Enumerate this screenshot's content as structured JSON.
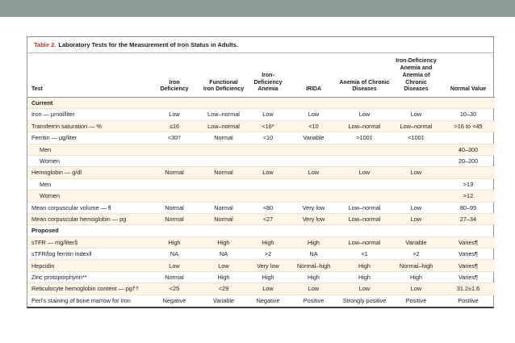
{
  "page": {
    "top_band_color": "#8c9e96",
    "background_color": "#ffffff",
    "stripe_color": "#fdf6e7",
    "title_accent_color": "#b93a31"
  },
  "table": {
    "title_label": "Table 2.",
    "title_text": "Laboratory Tests for the Measurement of Iron Status in Adults.",
    "columns": [
      "Test",
      "Iron\nDeficiency",
      "Functional\nIron Deficiency",
      "Iron-Deficiency\nAnemia",
      "IRIDA",
      "Anemia of Chronic\nDiseases",
      "Iron-Deficiency\nAnemia and\nAnemia of Chronic\nDiseases",
      "Normal Value"
    ],
    "rows": [
      {
        "type": "section",
        "label": "Current",
        "values": [
          "",
          "",
          "",
          "",
          "",
          "",
          ""
        ]
      },
      {
        "type": "data",
        "label": "Iron — μmol/liter",
        "values": [
          "Low",
          "Low–normal",
          "Low",
          "Low",
          "Low",
          "Low",
          "10–30"
        ]
      },
      {
        "type": "data",
        "label": "Transferrin saturation — %",
        "values": [
          "≤16",
          "Low–normal",
          "<16*",
          "<10",
          "Low–normal",
          "Low–normal",
          ">16 to <45"
        ]
      },
      {
        "type": "data",
        "label": "Ferritin — μg/liter",
        "values": [
          "<30†",
          "Normal",
          "<10",
          "Variable",
          ">100‡",
          "<100‡",
          ""
        ]
      },
      {
        "type": "sub",
        "label": "Men",
        "values": [
          "",
          "",
          "",
          "",
          "",
          "",
          "40–300"
        ]
      },
      {
        "type": "sub",
        "label": "Women",
        "values": [
          "",
          "",
          "",
          "",
          "",
          "",
          "20–200"
        ]
      },
      {
        "type": "data",
        "label": "Hemoglobin — g/dl",
        "values": [
          "Normal",
          "Normal",
          "Low",
          "Low",
          "Low",
          "Low",
          ""
        ]
      },
      {
        "type": "sub",
        "label": "Men",
        "values": [
          "",
          "",
          "",
          "",
          "",
          "",
          ">13"
        ]
      },
      {
        "type": "sub",
        "label": "Women",
        "values": [
          "",
          "",
          "",
          "",
          "",
          "",
          ">12"
        ]
      },
      {
        "type": "data",
        "label": "Mean corpuscular volume — fl",
        "values": [
          "Normal",
          "Normal",
          "<80",
          "Very low",
          "Low–normal",
          "Low",
          "80–95"
        ]
      },
      {
        "type": "data",
        "label": "Mean corpuscular hemoglobin — pg",
        "values": [
          "Normal",
          "Normal",
          "<27",
          "Very low",
          "Low–normal",
          "Low",
          "27–34"
        ]
      },
      {
        "type": "section",
        "label": "Proposed",
        "values": [
          "",
          "",
          "",
          "",
          "",
          "",
          ""
        ]
      },
      {
        "type": "data",
        "label": "sTFR — mg/liter§",
        "values": [
          "High",
          "High",
          "High",
          "High",
          "Low–normal",
          "Variable",
          "Varies¶"
        ]
      },
      {
        "type": "data",
        "label": "sTFR/log ferritin index‖",
        "values": [
          "NA",
          "NA",
          ">2",
          "NA",
          "<1",
          ">2",
          "Varies¶"
        ]
      },
      {
        "type": "data",
        "label": "Hepcidin",
        "values": [
          "Low",
          "Low",
          "Very low",
          "Normal–high",
          "High",
          "Normal–high",
          "Varies¶"
        ]
      },
      {
        "type": "data",
        "label": "Zinc protoporphyrin**",
        "values": [
          "Normal",
          "High",
          "High",
          "High",
          "High",
          "High",
          "Varies¶"
        ]
      },
      {
        "type": "data",
        "label": "Reticulocyte hemoglobin content — pg††",
        "values": [
          "<25",
          "<29",
          "Low",
          "Low",
          "Low",
          "Low",
          "31.2±1.6"
        ]
      },
      {
        "type": "data",
        "label": "Perl’s staining of bone marrow for iron",
        "values": [
          "Negative",
          "Variable",
          "Negative",
          "Positive",
          "Strongly positive",
          "Positive",
          "Positive"
        ]
      }
    ]
  }
}
